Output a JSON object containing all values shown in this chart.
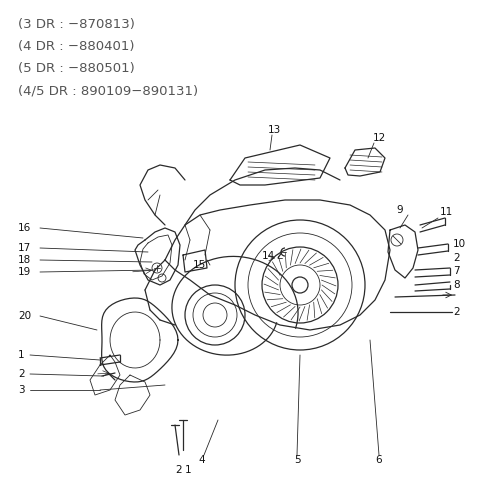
{
  "background_color": "#ffffff",
  "text_color": "#555555",
  "header_lines": [
    "(3 DR : −870813)",
    "(4 DR : −880401)",
    "(5 DR : −880501)",
    "(4/5 DR : 890109−890131)"
  ],
  "header_fontsize": 9.5,
  "line_color": "#2a2a2a",
  "label_fontsize": 7.5,
  "fig_width": 4.8,
  "fig_height": 4.94,
  "dpi": 100
}
